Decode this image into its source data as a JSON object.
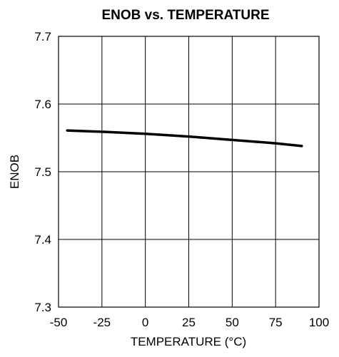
{
  "chart_data": {
    "type": "line",
    "title": "ENOB vs. TEMPERATURE",
    "xlabel": "TEMPERATURE (°C)",
    "ylabel": "ENOB",
    "xlim": [
      -50,
      100
    ],
    "ylim": [
      7.3,
      7.7
    ],
    "x_ticks": [
      -50,
      -25,
      0,
      25,
      50,
      75,
      100
    ],
    "y_ticks": [
      7.3,
      7.4,
      7.5,
      7.6,
      7.7
    ],
    "x_tick_labels": [
      "-50",
      "-25",
      "0",
      "25",
      "50",
      "75",
      "100"
    ],
    "y_tick_labels": [
      "7.3",
      "7.4",
      "7.5",
      "7.6",
      "7.7"
    ],
    "grid": true,
    "series": [
      {
        "color": "#000000",
        "x": [
          -45,
          -25,
          0,
          25,
          50,
          75,
          90
        ],
        "y": [
          7.561,
          7.559,
          7.556,
          7.552,
          7.547,
          7.542,
          7.538
        ]
      }
    ]
  }
}
